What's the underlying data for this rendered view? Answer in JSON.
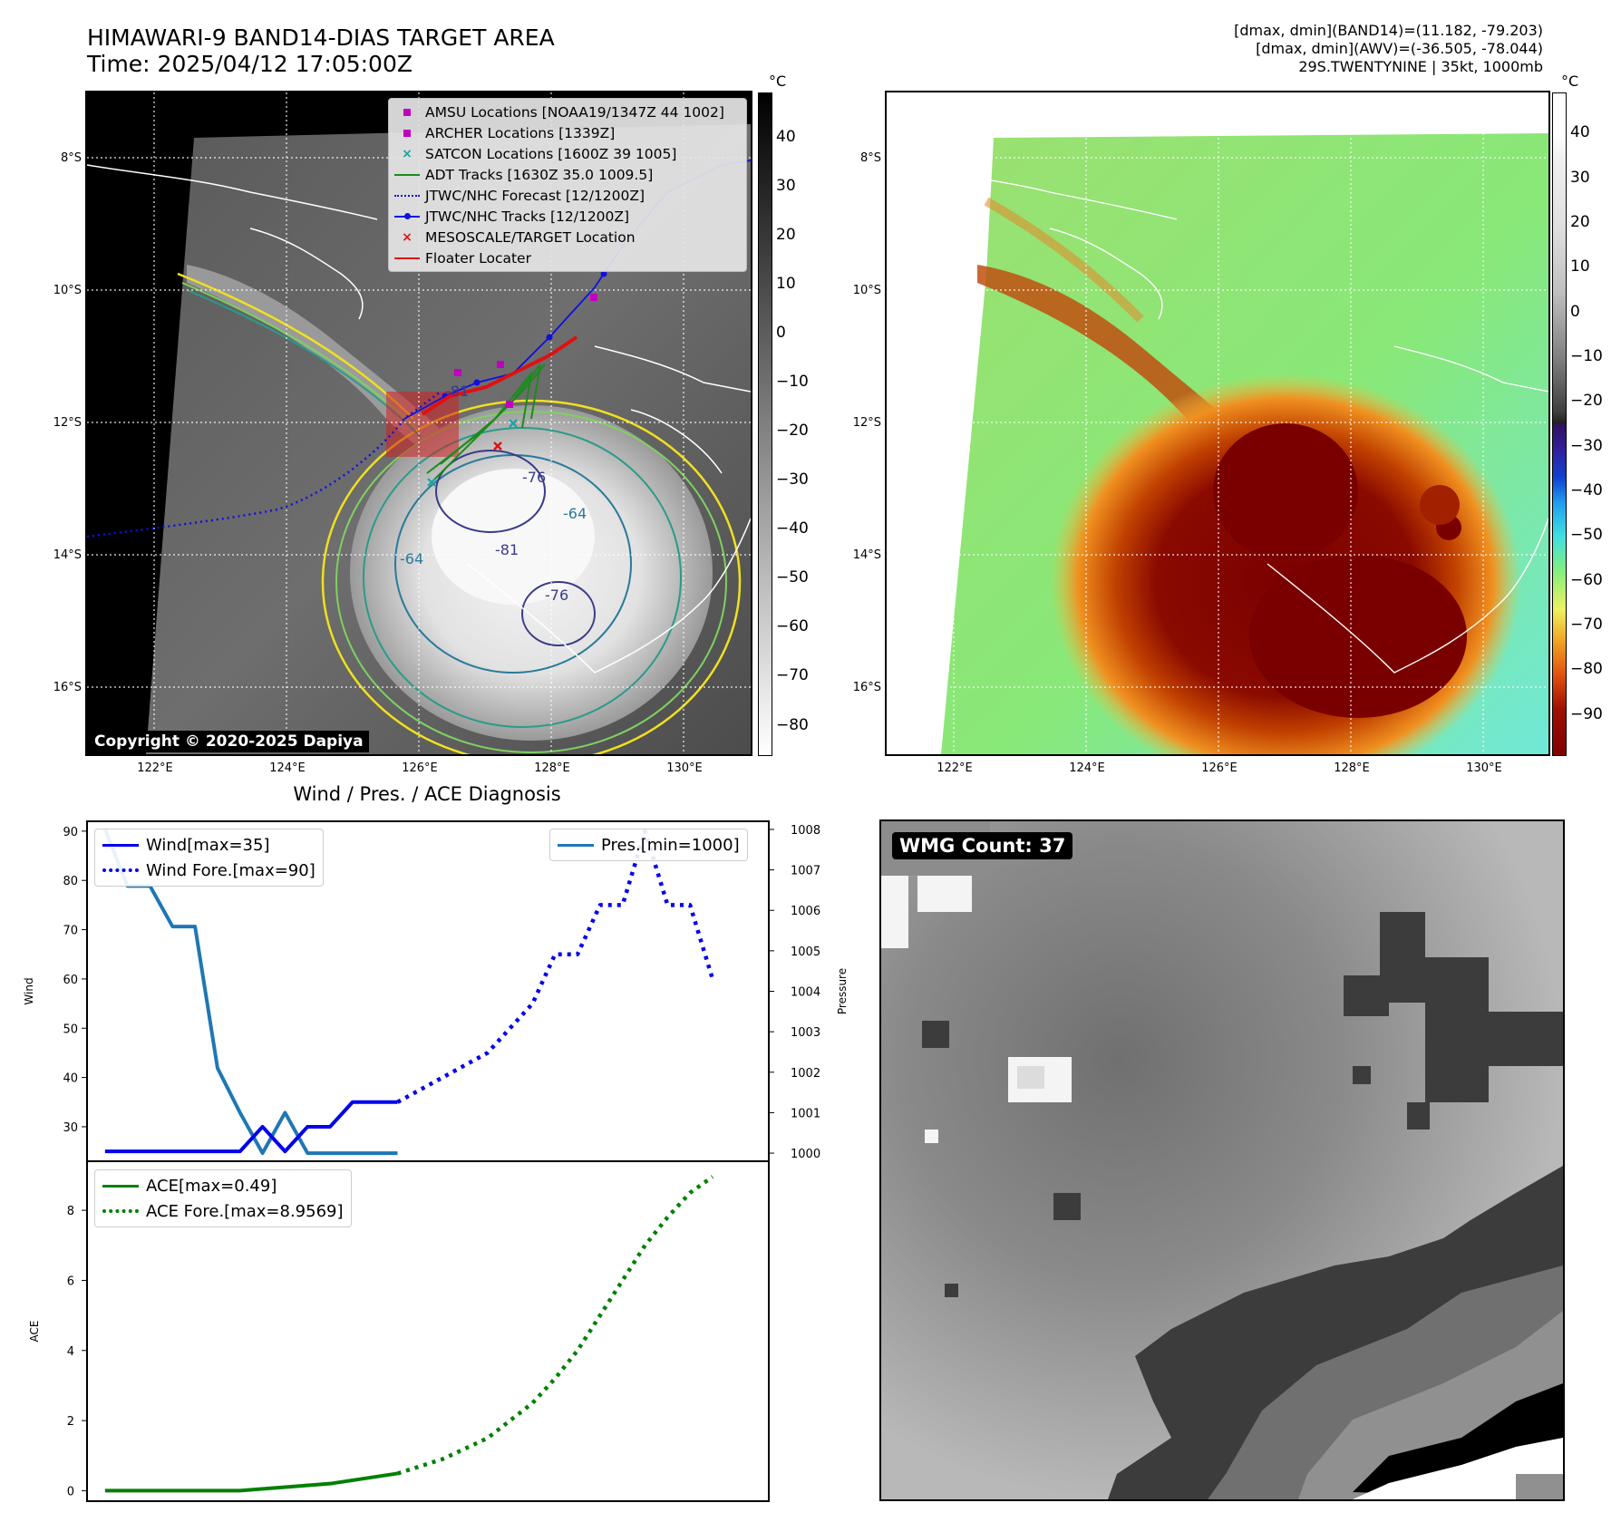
{
  "header": {
    "title_line1": "HIMAWARI-9 BAND14-DIAS TARGET AREA",
    "title_line2": "Time: 2025/04/12 17:05:00Z",
    "info_line1": "[dmax, dmin](BAND14)=(11.182, -79.203)",
    "info_line2": "[dmax, dmin](AWV)=(-36.505, -78.044)",
    "info_line3": "29S.TWENTYNINE | 35kt, 1000mb"
  },
  "colorbar_unit": "°C",
  "map_axes": {
    "lat_ticks": [
      "8°S",
      "10°S",
      "12°S",
      "14°S",
      "16°S"
    ],
    "lon_ticks": [
      "122°E",
      "124°E",
      "126°E",
      "128°E",
      "130°E"
    ]
  },
  "colorbar_left_ticks": [
    "40",
    "30",
    "20",
    "10",
    "0",
    "−10",
    "−20",
    "−30",
    "−40",
    "−50",
    "−60",
    "−70",
    "−80"
  ],
  "colorbar_right_ticks": [
    "40",
    "30",
    "20",
    "10",
    "0",
    "−10",
    "−20",
    "−30",
    "−40",
    "−50",
    "−60",
    "−70",
    "−80",
    "−90"
  ],
  "contour_labels": [
    "-81",
    "-64",
    "-76",
    "-81",
    "-76",
    "-64"
  ],
  "copyright": "Copyright © 2020-2025 Dapiya",
  "legend": [
    {
      "label": "AMSU Locations [NOAA19/1347Z 44 1002]",
      "color": "#c000c0",
      "icon": "square-marker"
    },
    {
      "label": "ARCHER Locations [1339Z]",
      "color": "#c000c0",
      "icon": "square-marker"
    },
    {
      "label": "SATCON Locations [1600Z 39 1005]",
      "color": "#1aa3a3",
      "icon": "x-marker"
    },
    {
      "label": "ADT Tracks [1630Z 35.0 1009.5]",
      "color": "#1a8c1a",
      "icon": "solid-line"
    },
    {
      "label": "JTWC/NHC Forecast [12/1200Z]",
      "color": "#1010e0",
      "icon": "dotted-line"
    },
    {
      "label": "JTWC/NHC Tracks [12/1200Z]",
      "color": "#1010e0",
      "icon": "line-with-dot"
    },
    {
      "label": "MESOSCALE/TARGET Location",
      "color": "#e01010",
      "icon": "x-marker"
    },
    {
      "label": "Floater Locater",
      "color": "#e01010",
      "icon": "solid-line"
    }
  ],
  "diagnosis_title": "Wind / Pres. / ACE Diagnosis",
  "wmg_label": "WMG Count: 37",
  "chart_data": [
    {
      "type": "line",
      "title": "Wind / Pres. / ACE Diagnosis",
      "ylabel": "Wind",
      "y2label": "Pressure",
      "ylim": [
        23,
        92
      ],
      "y2lim": [
        999.8,
        1008.2
      ],
      "yticks": [
        30,
        40,
        50,
        60,
        70,
        80,
        90
      ],
      "y2ticks": [
        1000,
        1001,
        1002,
        1003,
        1004,
        1005,
        1006,
        1007,
        1008
      ],
      "legend_left": [
        "Wind[max=35]",
        "Wind Fore.[max=90]"
      ],
      "legend_right": [
        "Pres.[min=1000]"
      ],
      "series": [
        {
          "name": "Wind[max=35]",
          "axis": "left",
          "color": "#0000ee",
          "style": "solid",
          "x": [
            0,
            6,
            7,
            8,
            9,
            10,
            11,
            13
          ],
          "values": [
            25,
            25,
            30,
            25,
            30,
            30,
            35,
            35
          ]
        },
        {
          "name": "Wind Fore.[max=90]",
          "axis": "left",
          "color": "#0000ee",
          "style": "dotted",
          "x": [
            13,
            15,
            17,
            18,
            19,
            20,
            21,
            22,
            23,
            24,
            25,
            26,
            27
          ],
          "values": [
            35,
            40,
            45,
            50,
            55,
            65,
            65,
            75,
            75,
            90,
            75,
            75,
            60
          ]
        },
        {
          "name": "Pres.[min=1000]",
          "axis": "right",
          "color": "#1f77b4",
          "style": "solid",
          "x": [
            0,
            1,
            2,
            3,
            4,
            5,
            6,
            7,
            8,
            9,
            10,
            11,
            12,
            13
          ],
          "values": [
            1008,
            1006.6,
            1006.6,
            1005.6,
            1005.6,
            1002.1,
            1001,
            1000,
            1001,
            1000,
            1000,
            1000,
            1000,
            1000
          ]
        }
      ]
    },
    {
      "type": "line",
      "ylabel": "ACE",
      "ylim": [
        -0.3,
        9.4
      ],
      "yticks": [
        0,
        2,
        4,
        6,
        8
      ],
      "legend_left": [
        "ACE[max=0.49]",
        "ACE Fore.[max=8.9569]"
      ],
      "series": [
        {
          "name": "ACE[max=0.49]",
          "color": "#008000",
          "style": "solid",
          "x": [
            0,
            6,
            10,
            13
          ],
          "values": [
            0,
            0,
            0.2,
            0.49
          ]
        },
        {
          "name": "ACE Fore.[max=8.9569]",
          "color": "#008000",
          "style": "dotted",
          "x": [
            13,
            15,
            17,
            19,
            20,
            21,
            22,
            23,
            24,
            25,
            26,
            27
          ],
          "values": [
            0.49,
            0.9,
            1.5,
            2.5,
            3.2,
            4.0,
            5.0,
            6.0,
            7.0,
            7.8,
            8.5,
            8.9569
          ]
        }
      ]
    }
  ]
}
